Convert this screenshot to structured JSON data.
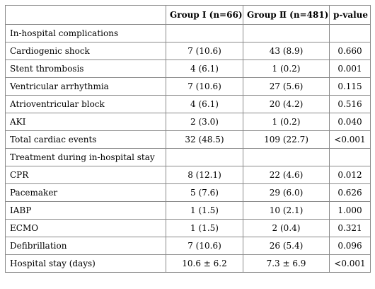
{
  "table": {
    "headers": [
      "",
      "Group Ⅰ (n=66)",
      "Group Ⅱ (n=481)",
      "p-value"
    ],
    "rows": [
      [
        "In-hospital complications",
        "",
        "",
        ""
      ],
      [
        "Cardiogenic shock",
        "7 (10.6)",
        "43 (8.9)",
        "0.660"
      ],
      [
        "Stent thrombosis",
        "4 (6.1)",
        "1 (0.2)",
        "0.001"
      ],
      [
        "Ventricular arrhythmia",
        "7 (10.6)",
        "27 (5.6)",
        "0.115"
      ],
      [
        "Atrioventricular block",
        "4 (6.1)",
        "20 (4.2)",
        "0.516"
      ],
      [
        "AKI",
        "2 (3.0)",
        "1 (0.2)",
        "0.040"
      ],
      [
        "Total cardiac events",
        "32 (48.5)",
        "109 (22.7)",
        "<0.001"
      ],
      [
        "Treatment during in-hospital stay",
        "",
        "",
        ""
      ],
      [
        "CPR",
        "8 (12.1)",
        "22 (4.6)",
        "0.012"
      ],
      [
        "Pacemaker",
        "5 (7.6)",
        "29 (6.0)",
        "0.626"
      ],
      [
        "IABP",
        "1 (1.5)",
        "10 (2.1)",
        "1.000"
      ],
      [
        "ECMO",
        "1 (1.5)",
        "2 (0.4)",
        "0.321"
      ],
      [
        "Defibrillation",
        "7 (10.6)",
        "26 (5.4)",
        "0.096"
      ],
      [
        "Hospital stay (days)",
        "10.6 ± 6.2",
        "7.3 ± 6.9",
        "<0.001"
      ]
    ]
  }
}
